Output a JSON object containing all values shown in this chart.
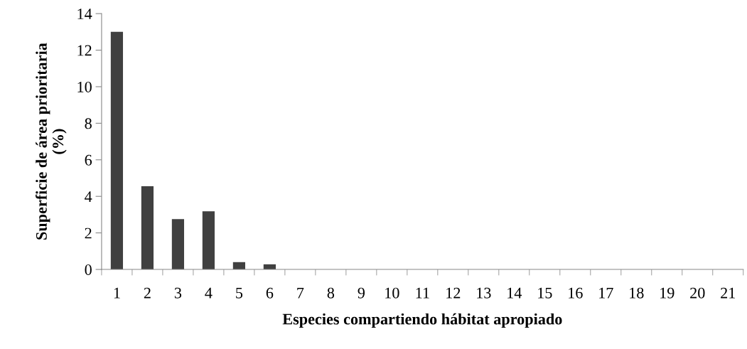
{
  "chart_data": {
    "type": "bar",
    "xlabel": "Especies compartiendo hábitat apropiado",
    "ylabel": "Superficie de área prioritaria\n(%)",
    "categories": [
      "1",
      "2",
      "3",
      "4",
      "5",
      "6",
      "7",
      "8",
      "9",
      "10",
      "11",
      "12",
      "13",
      "14",
      "15",
      "16",
      "17",
      "18",
      "19",
      "20",
      "21"
    ],
    "values": [
      13,
      4.55,
      2.75,
      3.18,
      0.4,
      0.28,
      0,
      0,
      0,
      0,
      0,
      0,
      0,
      0,
      0,
      0,
      0,
      0,
      0,
      0,
      0
    ],
    "color": "#404040",
    "ylim": [
      0,
      14
    ],
    "yticks": [
      0,
      2,
      4,
      6,
      8,
      10,
      12,
      14
    ],
    "grid": false,
    "legend": false
  }
}
